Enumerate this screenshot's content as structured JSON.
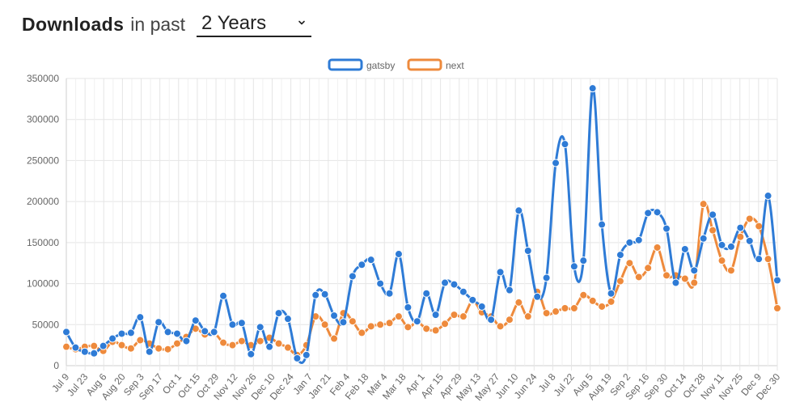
{
  "header": {
    "title": "Downloads",
    "subtitle": "in past",
    "range_value": "2 Years"
  },
  "colors": {
    "gatsby": "#2e7bd6",
    "next": "#ee8a3c",
    "grid": "#e5e5e5"
  },
  "chart_data": {
    "type": "line",
    "ylim": [
      0,
      350000
    ],
    "yticks": [
      0,
      50000,
      100000,
      150000,
      200000,
      250000,
      300000,
      350000
    ],
    "xlabels": [
      "Jul 9",
      "Jul 23",
      "Aug 6",
      "Aug 20",
      "Sep 3",
      "Sep 17",
      "Oct 1",
      "Oct 15",
      "Oct 29",
      "Nov 12",
      "Nov 26",
      "Dec 10",
      "Dec 24",
      "Jan 7",
      "Jan 21",
      "Feb 4",
      "Feb 18",
      "Mar 4",
      "Mar 18",
      "Apr 1",
      "Apr 15",
      "Apr 29",
      "May 13",
      "May 27",
      "Jun 10",
      "Jun 24",
      "Jul 8",
      "Jul 22",
      "Aug 5",
      "Aug 19",
      "Sep 2",
      "Sep 16",
      "Sep 30",
      "Oct 14",
      "Oct 28",
      "Nov 11",
      "Nov 25",
      "Dec 9",
      "Dec 30"
    ],
    "legend_position": "top",
    "grid": true,
    "series": [
      {
        "name": "gatsby",
        "values": [
          41000,
          22000,
          17000,
          15000,
          24000,
          33000,
          39000,
          40000,
          59000,
          17000,
          53000,
          41000,
          39000,
          30000,
          55000,
          42000,
          41000,
          85000,
          50000,
          52000,
          14000,
          47000,
          23000,
          64000,
          57000,
          9000,
          13000,
          86000,
          87000,
          61000,
          53000,
          109000,
          123000,
          129000,
          100000,
          88000,
          136000,
          71000,
          54000,
          88000,
          62000,
          101000,
          99000,
          90000,
          80000,
          72000,
          56000,
          114000,
          92000,
          189000,
          140000,
          84000,
          107000,
          247000,
          270000,
          121000,
          128000,
          338000,
          172000,
          88000,
          135000,
          150000,
          153000,
          186000,
          187000,
          167000,
          101000,
          142000,
          116000,
          155000,
          184000,
          147000,
          145000,
          168000,
          152000,
          130000,
          207000,
          104000
        ]
      },
      {
        "name": "next",
        "values": [
          23000,
          20000,
          23000,
          24000,
          18000,
          29000,
          25000,
          21000,
          31000,
          27000,
          21000,
          20000,
          27000,
          35000,
          45000,
          38000,
          40000,
          28000,
          25000,
          30000,
          25000,
          30000,
          34000,
          27000,
          22000,
          13000,
          25000,
          60000,
          50000,
          33000,
          64000,
          54000,
          40000,
          48000,
          50000,
          52000,
          60000,
          47000,
          53000,
          45000,
          43000,
          51000,
          62000,
          60000,
          79000,
          65000,
          60000,
          48000,
          56000,
          77000,
          60000,
          90000,
          64000,
          66000,
          70000,
          70000,
          86000,
          79000,
          72000,
          78000,
          103000,
          125000,
          108000,
          119000,
          144000,
          110000,
          110000,
          106000,
          101000,
          197000,
          165000,
          128000,
          116000,
          157000,
          179000,
          170000,
          130000,
          70000
        ]
      }
    ]
  }
}
